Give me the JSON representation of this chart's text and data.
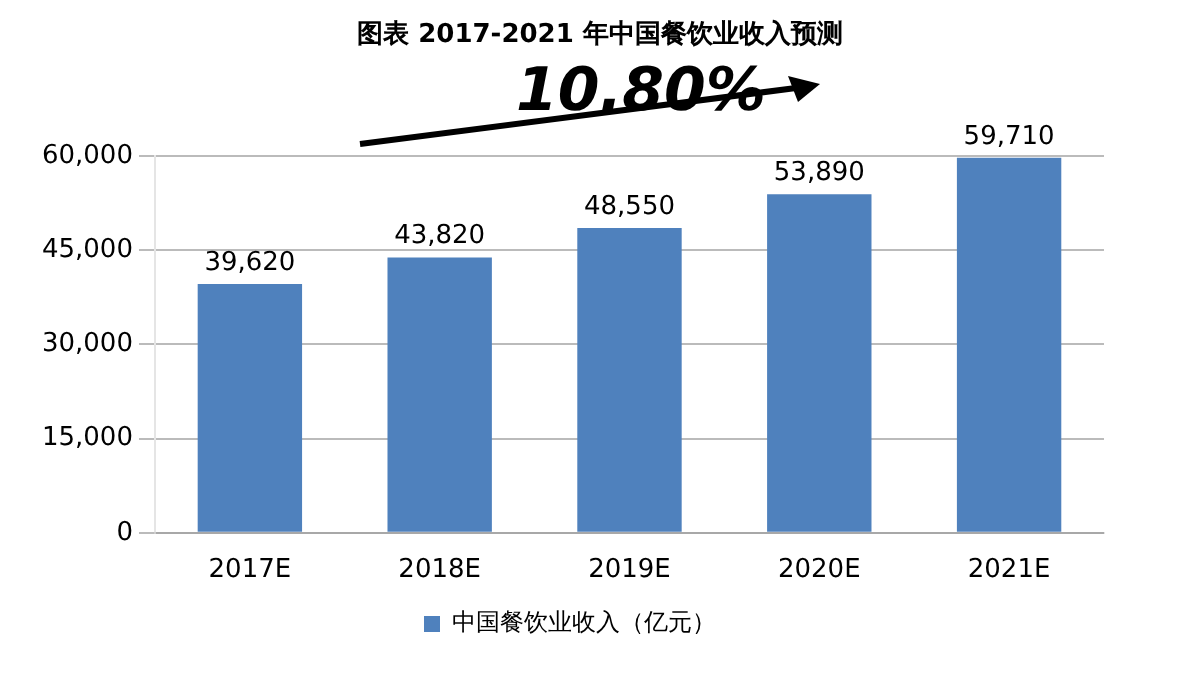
{
  "chart_data": {
    "type": "bar",
    "title": "图表 2017-2021 年中国餐饮业收入预测",
    "categories": [
      "2017E",
      "2018E",
      "2019E",
      "2020E",
      "2021E"
    ],
    "series": [
      {
        "name": "中国餐饮业收入（亿元）",
        "color": "#4f81bd",
        "values": [
          39620,
          43820,
          48550,
          53890,
          59710
        ],
        "value_labels": [
          "39,620",
          "43,820",
          "48,550",
          "53,890",
          "59,710"
        ]
      }
    ],
    "ylim": [
      0,
      60000
    ],
    "yticks": [
      {
        "value": 0,
        "label": "0"
      },
      {
        "value": 15000,
        "label": "15,000"
      },
      {
        "value": 30000,
        "label": "30,000"
      },
      {
        "value": 45000,
        "label": "45,000"
      },
      {
        "value": 60000,
        "label": "60,000"
      }
    ],
    "grid": "y",
    "legend": "bottom",
    "annotations": [
      "10.80%"
    ]
  }
}
